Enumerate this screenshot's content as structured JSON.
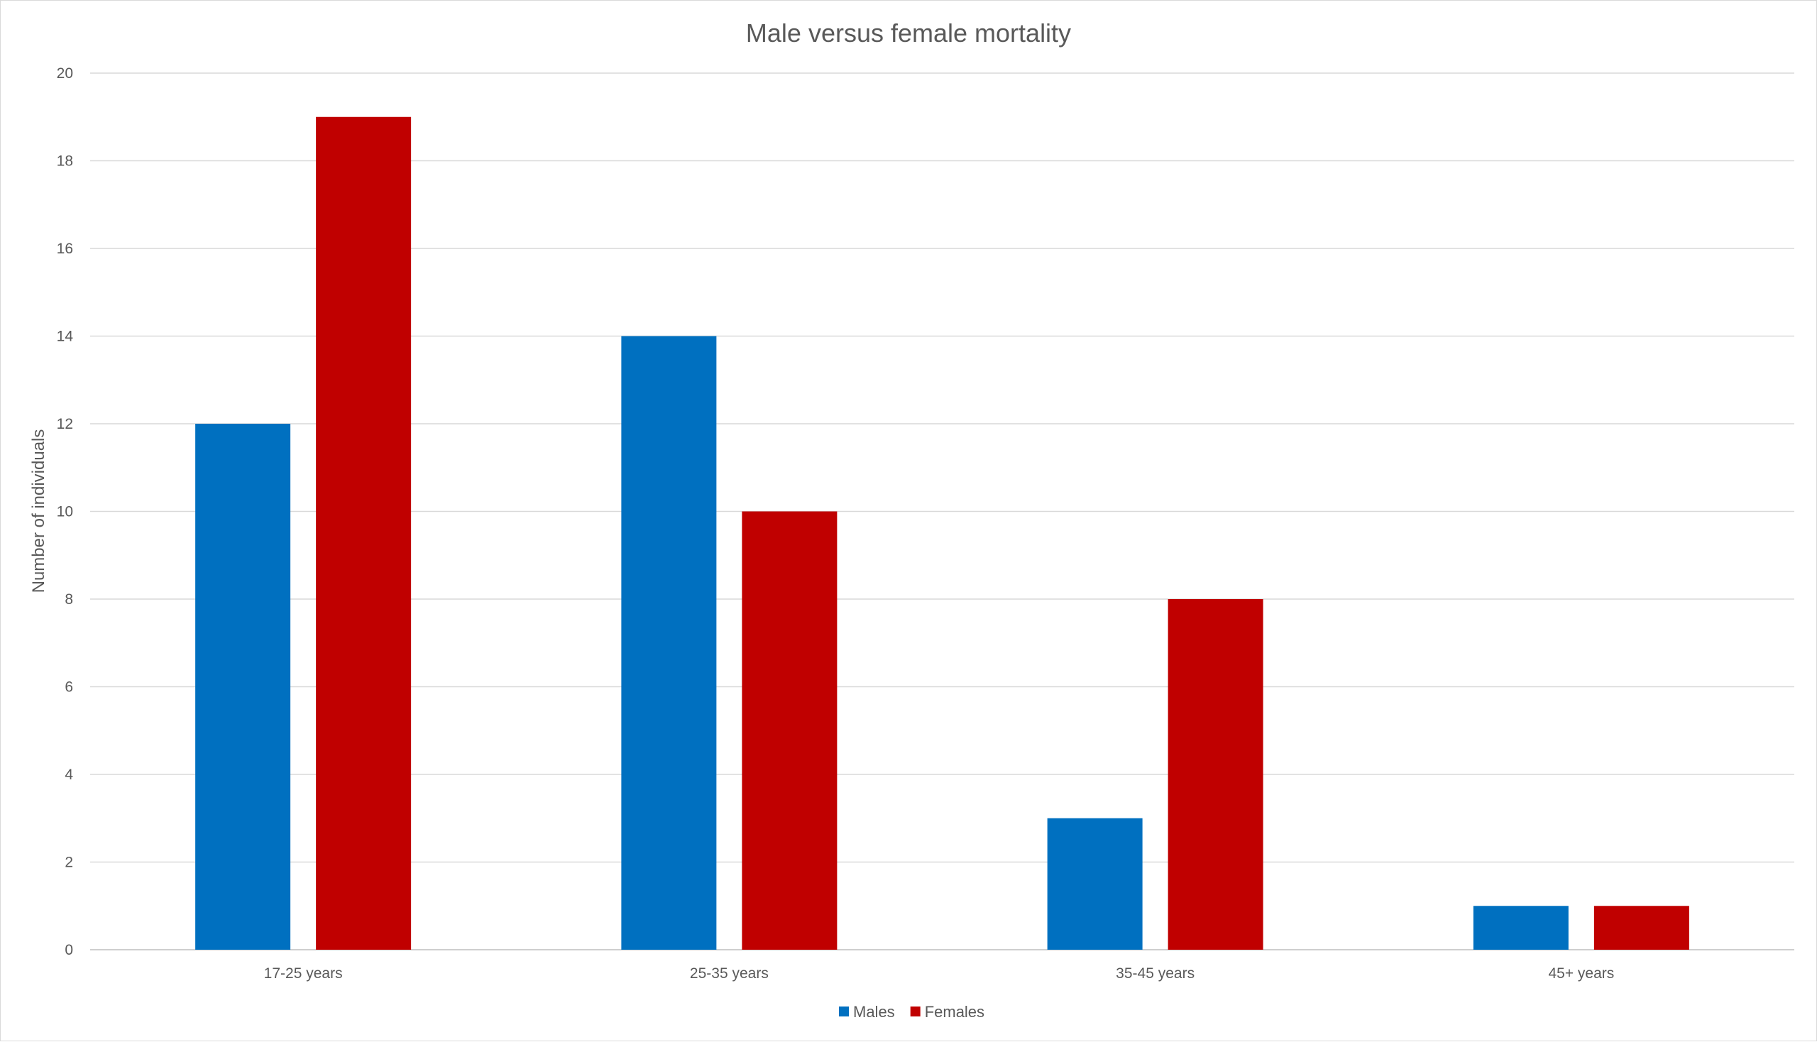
{
  "chart_data": {
    "type": "bar",
    "title": "Male versus female mortality",
    "xlabel": "",
    "ylabel": "Number of individuals",
    "categories": [
      "17-25 years",
      "25-35 years",
      "35-45 years",
      "45+ years"
    ],
    "series": [
      {
        "name": "Males",
        "color": "#0070C0",
        "values": [
          12,
          14,
          3,
          1
        ]
      },
      {
        "name": "Females",
        "color": "#C00000",
        "values": [
          19,
          10,
          8,
          1
        ]
      }
    ],
    "ylim": [
      0,
      20
    ],
    "yticks": [
      0,
      2,
      4,
      6,
      8,
      10,
      12,
      14,
      16,
      18,
      20
    ],
    "grid": true,
    "legend_position": "bottom"
  }
}
